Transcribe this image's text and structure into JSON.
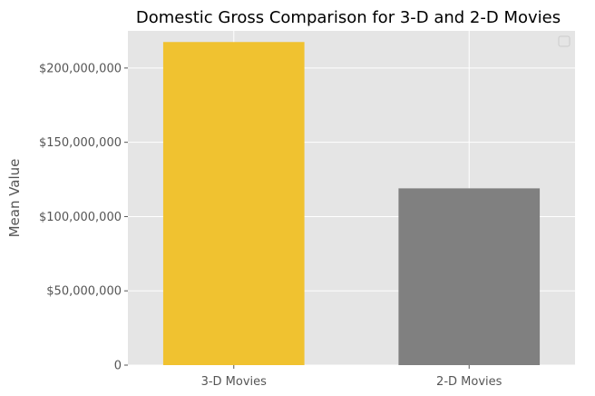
{
  "chart_data": {
    "type": "bar",
    "title": "Domestic Gross Comparison for 3-D and 2-D Movies",
    "xlabel": "",
    "ylabel": "Mean Value",
    "categories": [
      "3-D Movies",
      "2-D Movies"
    ],
    "values": [
      217500000,
      119000000
    ],
    "bar_colors": [
      "#F0C230",
      "#808080"
    ],
    "ylim": [
      0,
      225000000
    ],
    "yticks": [
      0,
      50000000,
      100000000,
      150000000,
      200000000
    ],
    "ytick_labels": [
      "0",
      "$50,000,000",
      "$100,000,000",
      "$150,000,000",
      "$200,000,000"
    ],
    "grid": true,
    "legend": {
      "placement": "top-right",
      "entries": []
    },
    "background": "#E5E5E5",
    "grid_color": "#FFFFFF"
  }
}
